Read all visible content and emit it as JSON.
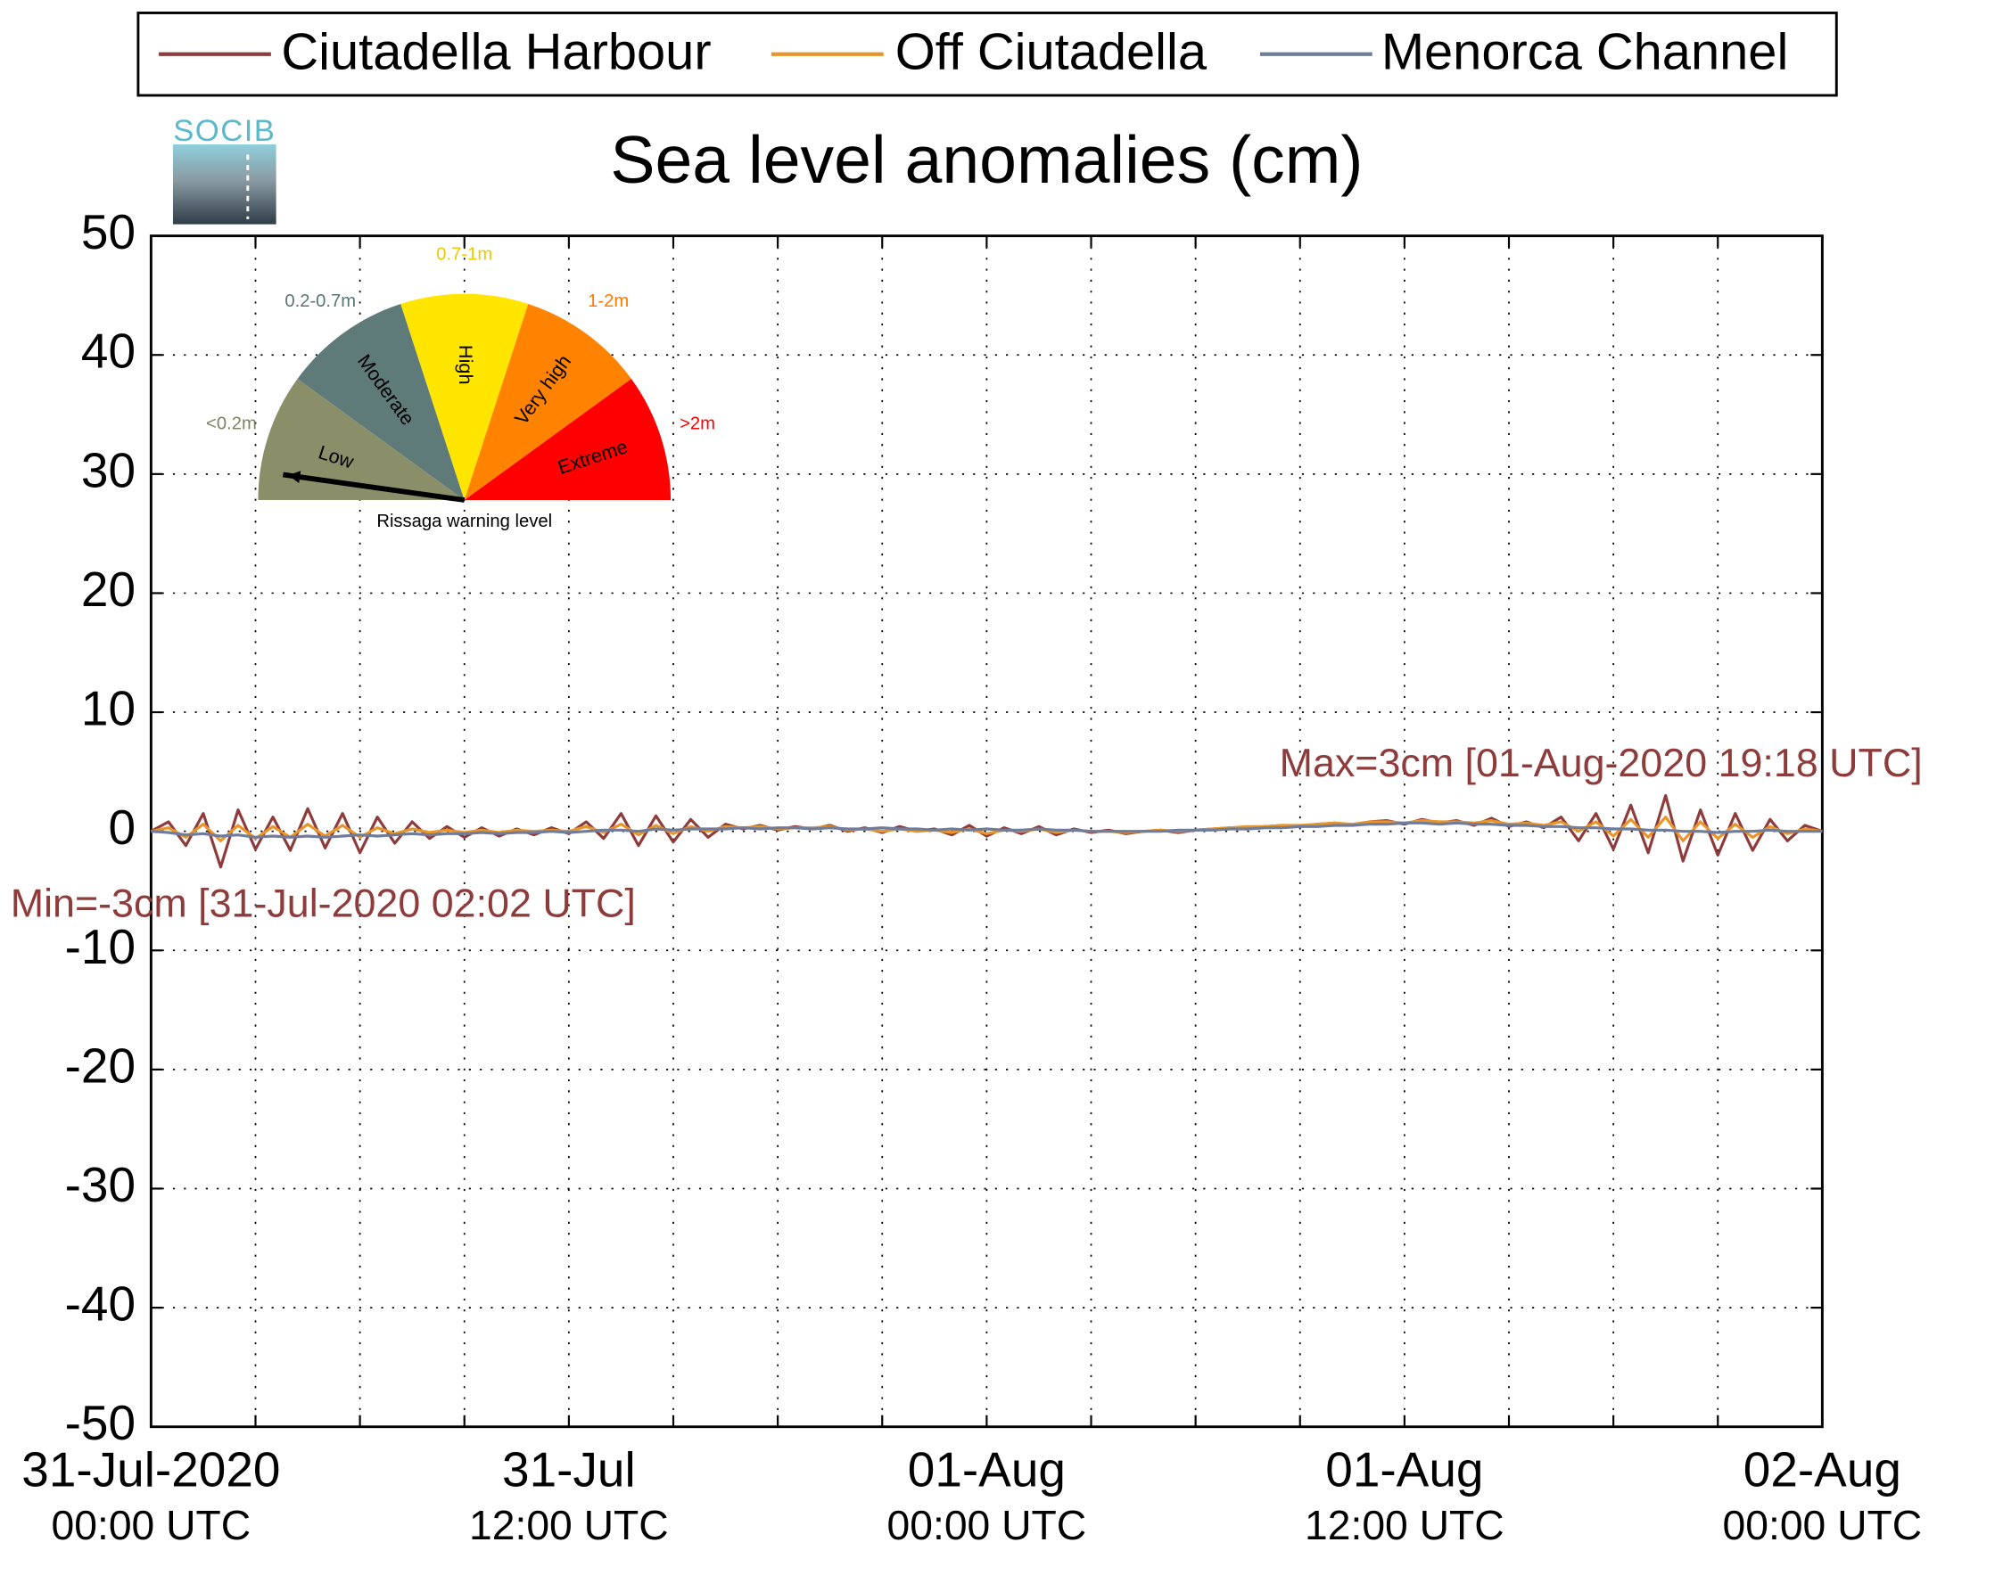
{
  "chart_data": {
    "type": "line",
    "title": "Sea level anomalies (cm)",
    "logo": "SOCIB",
    "x": [
      0,
      0.5,
      1,
      1.5,
      2,
      2.5,
      3,
      3.5,
      4,
      4.5,
      5,
      5.5,
      6,
      6.5,
      7,
      7.5,
      8,
      8.5,
      9,
      9.5,
      10,
      10.5,
      11,
      11.5,
      12,
      12.5,
      13,
      13.5,
      14,
      14.5,
      15,
      15.5,
      16,
      16.5,
      17,
      17.5,
      18,
      18.5,
      19,
      19.5,
      20,
      20.5,
      21,
      21.5,
      22,
      22.5,
      23,
      23.5,
      24,
      24.5,
      25,
      25.5,
      26,
      26.5,
      27,
      27.5,
      28,
      28.5,
      29,
      29.5,
      30,
      30.5,
      31,
      31.5,
      32,
      32.5,
      33,
      33.5,
      34,
      34.5,
      35,
      35.5,
      36,
      36.5,
      37,
      37.5,
      38,
      38.5,
      39,
      39.5,
      40,
      40.5,
      41,
      41.5,
      42,
      42.5,
      43,
      43.5,
      44,
      44.5,
      45,
      45.5,
      46,
      46.5,
      47,
      47.5,
      48
    ],
    "xlim": [
      0,
      48
    ],
    "xticks": [
      {
        "value": 0,
        "label": [
          "31-Jul-2020",
          "00:00 UTC"
        ]
      },
      {
        "value": 3,
        "label": null
      },
      {
        "value": 6,
        "label": null
      },
      {
        "value": 9,
        "label": null
      },
      {
        "value": 12,
        "label": [
          "31-Jul",
          "12:00 UTC"
        ]
      },
      {
        "value": 15,
        "label": null
      },
      {
        "value": 18,
        "label": null
      },
      {
        "value": 21,
        "label": null
      },
      {
        "value": 24,
        "label": [
          "01-Aug",
          "00:00 UTC"
        ]
      },
      {
        "value": 27,
        "label": null
      },
      {
        "value": 30,
        "label": null
      },
      {
        "value": 33,
        "label": null
      },
      {
        "value": 36,
        "label": [
          "01-Aug",
          "12:00 UTC"
        ]
      },
      {
        "value": 39,
        "label": null
      },
      {
        "value": 42,
        "label": null
      },
      {
        "value": 45,
        "label": null
      },
      {
        "value": 48,
        "label": [
          "02-Aug",
          "00:00 UTC"
        ]
      }
    ],
    "ylim": [
      -50,
      50
    ],
    "yticks": [
      -50,
      -40,
      -30,
      -20,
      -10,
      0,
      10,
      20,
      30,
      40,
      50
    ],
    "grid": true,
    "legend": "top",
    "series": [
      {
        "name": "Ciutadella Harbour",
        "color": "#8e3b3b",
        "values": [
          0,
          0.8,
          -1.2,
          1.5,
          -3,
          1.8,
          -1.5,
          1.2,
          -1.6,
          1.9,
          -1.4,
          1.5,
          -1.8,
          1.2,
          -1,
          0.8,
          -0.6,
          0.4,
          -0.5,
          0.3,
          -0.4,
          0.2,
          -0.3,
          0.3,
          -0.2,
          0.8,
          -0.6,
          1.5,
          -1.2,
          1.3,
          -0.9,
          1,
          -0.5,
          0.6,
          0.2,
          0.5,
          0.1,
          0.4,
          0.2,
          0.5,
          0,
          0.3,
          -0.1,
          0.4,
          0,
          0.2,
          -0.3,
          0.5,
          -0.4,
          0.3,
          -0.2,
          0.4,
          -0.3,
          0.2,
          -0.1,
          0.1,
          -0.2,
          0,
          0.1,
          -0.1,
          0.1,
          0.2,
          0.3,
          0.3,
          0.4,
          0.5,
          0.4,
          0.6,
          0.7,
          0.5,
          0.8,
          0.9,
          0.6,
          1,
          0.7,
          0.9,
          0.5,
          1.1,
          0.4,
          0.8,
          0.3,
          1.2,
          -0.8,
          1.5,
          -1.5,
          2.2,
          -1.8,
          3,
          -2.5,
          1.8,
          -2,
          1.5,
          -1.6,
          1,
          -0.8,
          0.5,
          0
        ]
      },
      {
        "name": "Off Ciutadella",
        "color": "#e8952a",
        "values": [
          0,
          0.3,
          -0.5,
          0.6,
          -0.8,
          0.5,
          -0.6,
          0.4,
          -0.5,
          0.6,
          -0.4,
          0.5,
          -0.5,
          0.3,
          -0.2,
          0.2,
          -0.1,
          0.1,
          -0.1,
          0.1,
          -0.1,
          0.1,
          0,
          0.1,
          0,
          0.4,
          -0.1,
          0.6,
          -0.3,
          0.5,
          -0.2,
          0.4,
          0,
          0.4,
          0.3,
          0.4,
          0.2,
          0.3,
          0.3,
          0.4,
          0.1,
          0.2,
          0,
          0.2,
          0,
          0.1,
          -0.1,
          0.2,
          -0.2,
          0.1,
          0,
          0.2,
          -0.1,
          0.1,
          0,
          0,
          -0.1,
          0,
          0.1,
          0,
          0.1,
          0.2,
          0.3,
          0.4,
          0.4,
          0.5,
          0.5,
          0.6,
          0.7,
          0.6,
          0.8,
          0.8,
          0.7,
          0.9,
          0.8,
          0.8,
          0.7,
          0.9,
          0.6,
          0.7,
          0.5,
          0.8,
          0,
          0.8,
          -0.4,
          1,
          -0.5,
          1.2,
          -0.8,
          0.8,
          -0.6,
          0.6,
          -0.5,
          0.4,
          -0.2,
          0.2,
          0
        ]
      },
      {
        "name": "Menorca Channel",
        "color": "#6f7c9c",
        "values": [
          0,
          -0.1,
          -0.3,
          -0.2,
          -0.4,
          -0.3,
          -0.5,
          -0.4,
          -0.5,
          -0.4,
          -0.5,
          -0.4,
          -0.3,
          -0.4,
          -0.3,
          -0.2,
          -0.3,
          -0.2,
          -0.2,
          -0.1,
          -0.2,
          -0.1,
          -0.1,
          0,
          -0.1,
          0,
          0.1,
          0.1,
          0,
          0.2,
          0.1,
          0.2,
          0.2,
          0.2,
          0.3,
          0.2,
          0.3,
          0.3,
          0.2,
          0.3,
          0.2,
          0.2,
          0.3,
          0.2,
          0.2,
          0.1,
          0.2,
          0.1,
          0.2,
          0.1,
          0.1,
          0.2,
          0.1,
          0.1,
          0,
          0,
          0,
          0,
          0,
          0.1,
          0.1,
          0.1,
          0.2,
          0.2,
          0.3,
          0.3,
          0.4,
          0.4,
          0.5,
          0.5,
          0.6,
          0.6,
          0.7,
          0.7,
          0.6,
          0.7,
          0.6,
          0.6,
          0.5,
          0.5,
          0.4,
          0.4,
          0.3,
          0.3,
          0.2,
          0.2,
          0.1,
          0.1,
          0,
          0,
          -0.1,
          0,
          0,
          0.1,
          0,
          0,
          0
        ]
      }
    ],
    "annotations": [
      {
        "text": "Max=3cm [01-Aug-2020 19:18 UTC]",
        "color": "#8e3b3b"
      },
      {
        "text": "Min=-3cm [31-Jul-2020 02:02 UTC]",
        "color": "#8e3b3b"
      }
    ],
    "gauge": {
      "title": "Rissaga warning level",
      "levels": [
        {
          "name": "Low",
          "range": "<0.2m",
          "color": "#8a8e69",
          "label_color": "#7d8262"
        },
        {
          "name": "Moderate",
          "range": "0.2-0.7m",
          "color": "#5f7b79",
          "label_color": "#5a7674"
        },
        {
          "name": "High",
          "range": "0.7-1m",
          "color": "#ffe500",
          "label_color": "#e9cb00"
        },
        {
          "name": "Very high",
          "range": "1-2m",
          "color": "#ff8200",
          "label_color": "#ff7a00"
        },
        {
          "name": "Extreme",
          "range": ">2m",
          "color": "#ff0000",
          "label_color": "#ff0000"
        }
      ]
    }
  }
}
